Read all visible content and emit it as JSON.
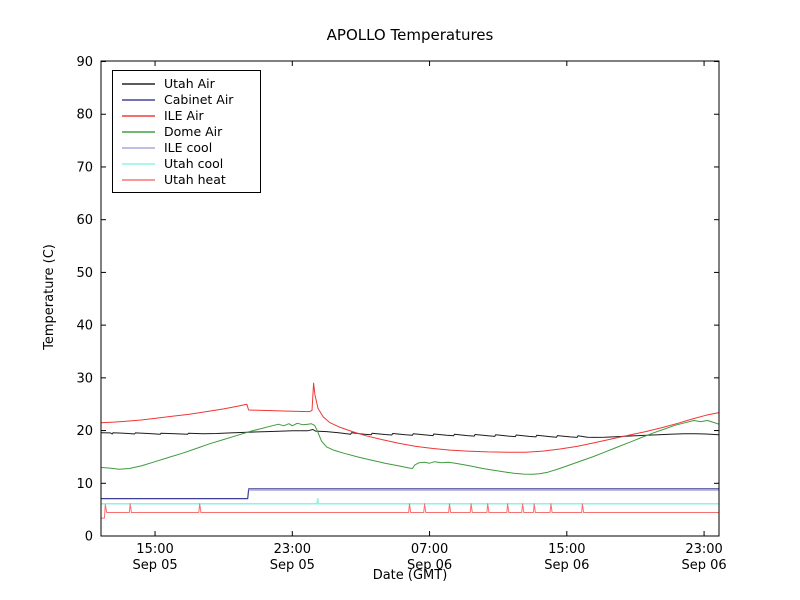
{
  "chart_data": {
    "type": "line",
    "title": "APOLLO Temperatures",
    "xlabel": "Date (GMT)",
    "ylabel": "Temperature (C)",
    "x_unit_note": "hours since Sep 05 00:00 GMT",
    "xlim": [
      11.85,
      47.87
    ],
    "ylim": [
      0,
      90.1
    ],
    "grid": false,
    "legend_position": "upper left",
    "y_ticks": [
      0,
      10,
      20,
      30,
      40,
      50,
      60,
      70,
      80,
      90
    ],
    "x_ticks": [
      {
        "t": 15,
        "line1": "15:00",
        "line2": "Sep 05"
      },
      {
        "t": 23,
        "line1": "23:00",
        "line2": "Sep 05"
      },
      {
        "t": 31,
        "line1": "07:00",
        "line2": "Sep 06"
      },
      {
        "t": 39,
        "line1": "15:00",
        "line2": "Sep 06"
      },
      {
        "t": 47,
        "line1": "23:00",
        "line2": "Sep 06"
      }
    ],
    "series": [
      {
        "name": "Utah Air",
        "color": "#1c1c1c",
        "width": 1,
        "points": [
          [
            11.85,
            19.6
          ],
          [
            12.4,
            19.55
          ],
          [
            12.5,
            19.35
          ],
          [
            12.55,
            19.6
          ],
          [
            13.2,
            19.5
          ],
          [
            13.8,
            19.35
          ],
          [
            13.85,
            19.55
          ],
          [
            14.6,
            19.45
          ],
          [
            15.3,
            19.3
          ],
          [
            15.35,
            19.5
          ],
          [
            16.2,
            19.4
          ],
          [
            16.9,
            19.3
          ],
          [
            16.95,
            19.5
          ],
          [
            17.8,
            19.4
          ],
          [
            18.6,
            19.45
          ],
          [
            19.4,
            19.55
          ],
          [
            20.2,
            19.65
          ],
          [
            21.0,
            19.75
          ],
          [
            22.0,
            19.85
          ],
          [
            23.0,
            19.95
          ],
          [
            23.9,
            19.95
          ],
          [
            24.2,
            20.2
          ],
          [
            24.35,
            19.9
          ],
          [
            25.0,
            19.8
          ],
          [
            25.7,
            19.6
          ],
          [
            26.4,
            19.3
          ],
          [
            26.45,
            19.6
          ],
          [
            27.2,
            19.3
          ],
          [
            27.6,
            19.2
          ],
          [
            27.65,
            19.5
          ],
          [
            28.4,
            19.25
          ],
          [
            28.8,
            19.15
          ],
          [
            28.85,
            19.45
          ],
          [
            29.6,
            19.2
          ],
          [
            30.0,
            19.1
          ],
          [
            30.05,
            19.4
          ],
          [
            30.8,
            19.15
          ],
          [
            31.2,
            19.05
          ],
          [
            31.25,
            19.35
          ],
          [
            32.0,
            19.1
          ],
          [
            32.4,
            19.0
          ],
          [
            32.45,
            19.3
          ],
          [
            33.2,
            19.05
          ],
          [
            33.6,
            18.95
          ],
          [
            33.65,
            19.25
          ],
          [
            34.4,
            19.0
          ],
          [
            34.8,
            18.9
          ],
          [
            34.85,
            19.2
          ],
          [
            35.6,
            18.95
          ],
          [
            36.0,
            18.85
          ],
          [
            36.05,
            19.15
          ],
          [
            36.8,
            18.9
          ],
          [
            37.2,
            18.8
          ],
          [
            37.25,
            19.1
          ],
          [
            38.0,
            18.85
          ],
          [
            38.4,
            18.75
          ],
          [
            38.45,
            19.05
          ],
          [
            39.2,
            18.8
          ],
          [
            39.6,
            18.7
          ],
          [
            39.65,
            19.0
          ],
          [
            40.2,
            18.75
          ],
          [
            40.6,
            18.7
          ],
          [
            41.2,
            18.75
          ],
          [
            42.0,
            18.85
          ],
          [
            43.0,
            19.0
          ],
          [
            44.0,
            19.15
          ],
          [
            45.0,
            19.3
          ],
          [
            45.8,
            19.4
          ],
          [
            46.5,
            19.4
          ],
          [
            47.1,
            19.35
          ],
          [
            47.87,
            19.2
          ]
        ]
      },
      {
        "name": "Cabinet Air",
        "color": "#3d3d94",
        "width": 1.2,
        "points": [
          [
            11.85,
            7.1
          ],
          [
            20.4,
            7.1
          ],
          [
            20.46,
            8.95
          ],
          [
            47.87,
            8.95
          ]
        ]
      },
      {
        "name": "ILE Air",
        "color": "#f03636",
        "width": 1,
        "points": [
          [
            11.85,
            21.5
          ],
          [
            12.6,
            21.6
          ],
          [
            13.4,
            21.8
          ],
          [
            14.2,
            22.0
          ],
          [
            15.0,
            22.3
          ],
          [
            16.0,
            22.7
          ],
          [
            17.0,
            23.1
          ],
          [
            18.0,
            23.6
          ],
          [
            19.0,
            24.1
          ],
          [
            19.8,
            24.6
          ],
          [
            20.35,
            25.0
          ],
          [
            20.45,
            23.9
          ],
          [
            21.0,
            23.85
          ],
          [
            22.0,
            23.75
          ],
          [
            23.0,
            23.65
          ],
          [
            24.0,
            23.6
          ],
          [
            24.15,
            23.8
          ],
          [
            24.24,
            29.0
          ],
          [
            24.32,
            26.8
          ],
          [
            24.5,
            24.2
          ],
          [
            24.8,
            22.6
          ],
          [
            25.2,
            21.5
          ],
          [
            25.8,
            20.6
          ],
          [
            26.5,
            19.8
          ],
          [
            27.3,
            19.0
          ],
          [
            28.2,
            18.3
          ],
          [
            29.2,
            17.6
          ],
          [
            30.2,
            17.0
          ],
          [
            31.2,
            16.6
          ],
          [
            32.2,
            16.3
          ],
          [
            33.2,
            16.1
          ],
          [
            34.4,
            15.95
          ],
          [
            35.6,
            15.9
          ],
          [
            36.6,
            15.9
          ],
          [
            37.6,
            16.1
          ],
          [
            38.6,
            16.5
          ],
          [
            39.6,
            17.0
          ],
          [
            40.6,
            17.7
          ],
          [
            41.6,
            18.4
          ],
          [
            42.6,
            19.1
          ],
          [
            43.6,
            19.8
          ],
          [
            44.6,
            20.6
          ],
          [
            45.5,
            21.4
          ],
          [
            46.3,
            22.2
          ],
          [
            47.1,
            22.9
          ],
          [
            47.87,
            23.4
          ]
        ]
      },
      {
        "name": "Dome Air",
        "color": "#3d9b3d",
        "width": 1,
        "points": [
          [
            11.85,
            13.0
          ],
          [
            12.3,
            12.9
          ],
          [
            12.9,
            12.65
          ],
          [
            13.5,
            12.8
          ],
          [
            14.2,
            13.3
          ],
          [
            15.0,
            14.1
          ],
          [
            15.8,
            14.9
          ],
          [
            16.6,
            15.7
          ],
          [
            17.4,
            16.6
          ],
          [
            18.2,
            17.5
          ],
          [
            19.0,
            18.3
          ],
          [
            19.8,
            19.1
          ],
          [
            20.5,
            19.8
          ],
          [
            21.1,
            20.3
          ],
          [
            21.7,
            20.8
          ],
          [
            22.2,
            21.2
          ],
          [
            22.5,
            20.9
          ],
          [
            22.8,
            21.3
          ],
          [
            23.0,
            20.9
          ],
          [
            23.3,
            21.4
          ],
          [
            23.6,
            21.1
          ],
          [
            23.9,
            21.2
          ],
          [
            24.1,
            21.3
          ],
          [
            24.3,
            21.0
          ],
          [
            24.45,
            20.0
          ],
          [
            24.7,
            18.0
          ],
          [
            25.0,
            16.9
          ],
          [
            25.4,
            16.3
          ],
          [
            26.0,
            15.7
          ],
          [
            26.8,
            15.0
          ],
          [
            27.6,
            14.4
          ],
          [
            28.4,
            13.8
          ],
          [
            29.2,
            13.3
          ],
          [
            29.8,
            12.9
          ],
          [
            30.0,
            12.8
          ],
          [
            30.15,
            13.5
          ],
          [
            30.4,
            13.9
          ],
          [
            30.7,
            14.0
          ],
          [
            31.0,
            13.8
          ],
          [
            31.3,
            14.1
          ],
          [
            31.7,
            13.9
          ],
          [
            32.1,
            14.0
          ],
          [
            32.5,
            13.8
          ],
          [
            33.0,
            13.5
          ],
          [
            33.5,
            13.2
          ],
          [
            34.1,
            12.8
          ],
          [
            34.7,
            12.5
          ],
          [
            35.3,
            12.2
          ],
          [
            35.9,
            11.9
          ],
          [
            36.5,
            11.75
          ],
          [
            37.0,
            11.7
          ],
          [
            37.4,
            11.8
          ],
          [
            37.9,
            12.1
          ],
          [
            38.5,
            12.7
          ],
          [
            39.1,
            13.4
          ],
          [
            39.8,
            14.2
          ],
          [
            40.5,
            15.0
          ],
          [
            41.2,
            15.9
          ],
          [
            41.9,
            16.8
          ],
          [
            42.6,
            17.7
          ],
          [
            43.3,
            18.6
          ],
          [
            44.0,
            19.5
          ],
          [
            44.7,
            20.3
          ],
          [
            45.3,
            21.0
          ],
          [
            45.9,
            21.5
          ],
          [
            46.4,
            21.9
          ],
          [
            46.8,
            21.7
          ],
          [
            47.2,
            21.9
          ],
          [
            47.5,
            21.6
          ],
          [
            47.87,
            21.2
          ]
        ]
      },
      {
        "name": "ILE cool",
        "color": "#a6a6d8",
        "width": 1.7,
        "points": [
          [
            20.46,
            8.75
          ],
          [
            47.87,
            8.75
          ]
        ]
      },
      {
        "name": "Utah cool",
        "color": "#8df3e6",
        "width": 1.5,
        "points": [
          [
            11.85,
            6.1
          ],
          [
            24.44,
            6.1
          ],
          [
            24.48,
            7.05
          ],
          [
            24.52,
            6.1
          ],
          [
            47.87,
            6.1
          ]
        ]
      },
      {
        "name": "Utah heat",
        "color": "#f87070",
        "width": 1,
        "points": [
          [
            11.85,
            3.4
          ],
          [
            12.05,
            3.4
          ],
          [
            12.1,
            6.0
          ],
          [
            12.18,
            4.45
          ],
          [
            13.5,
            4.45
          ],
          [
            13.55,
            6.1
          ],
          [
            13.62,
            4.45
          ],
          [
            17.55,
            4.45
          ],
          [
            17.6,
            6.1
          ],
          [
            17.67,
            4.45
          ],
          [
            29.78,
            4.45
          ],
          [
            29.83,
            6.1
          ],
          [
            29.9,
            4.45
          ],
          [
            30.66,
            4.45
          ],
          [
            30.71,
            6.1
          ],
          [
            30.78,
            4.45
          ],
          [
            32.11,
            4.45
          ],
          [
            32.16,
            6.1
          ],
          [
            32.23,
            4.45
          ],
          [
            33.37,
            4.45
          ],
          [
            33.42,
            6.1
          ],
          [
            33.49,
            4.45
          ],
          [
            34.34,
            4.45
          ],
          [
            34.39,
            6.1
          ],
          [
            34.46,
            4.45
          ],
          [
            35.5,
            4.45
          ],
          [
            35.55,
            6.1
          ],
          [
            35.62,
            4.45
          ],
          [
            36.37,
            4.45
          ],
          [
            36.42,
            6.1
          ],
          [
            36.49,
            4.45
          ],
          [
            37.05,
            4.45
          ],
          [
            37.1,
            6.1
          ],
          [
            37.17,
            4.45
          ],
          [
            38.02,
            4.45
          ],
          [
            38.07,
            6.1
          ],
          [
            38.14,
            4.45
          ],
          [
            39.86,
            4.45
          ],
          [
            39.91,
            6.1
          ],
          [
            39.98,
            4.45
          ],
          [
            47.87,
            4.45
          ]
        ]
      }
    ]
  }
}
